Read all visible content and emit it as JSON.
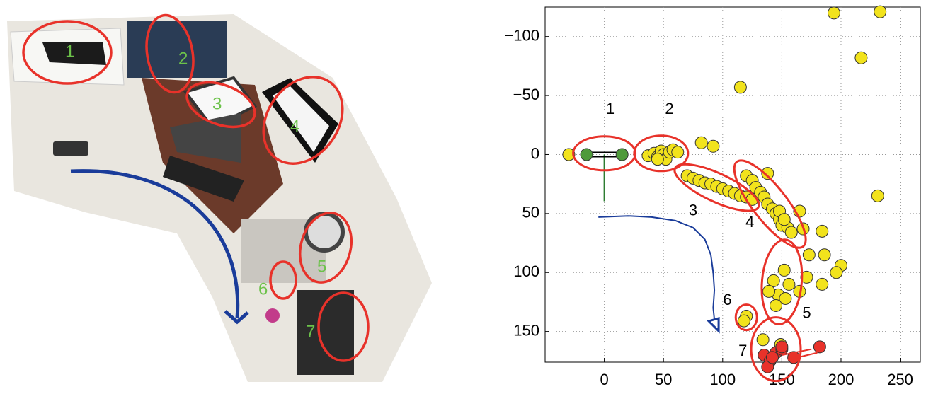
{
  "photo": {
    "labels": [
      "1",
      "2",
      "3",
      "4",
      "5",
      "6",
      "7"
    ]
  },
  "chart_data": {
    "type": "scatter",
    "xlim": [
      -50,
      267
    ],
    "ylim": [
      -125,
      176
    ],
    "y_reversed": true,
    "grid": true,
    "xticks": [
      0,
      50,
      100,
      150,
      200,
      250
    ],
    "yticks": [
      {
        "value": -100,
        "label": "−100"
      },
      {
        "value": -50,
        "label": "−50"
      },
      0,
      50,
      100,
      150
    ],
    "annotations": [
      "1",
      "2",
      "3",
      "4",
      "5",
      "6",
      "7"
    ],
    "series": [
      {
        "kind": "line",
        "color": "#1a3c9a",
        "x": [
          -5,
          20,
          40,
          60,
          75,
          85,
          90,
          92,
          93,
          92,
          93
        ],
        "values": [
          53,
          52,
          53,
          56,
          62,
          72,
          85,
          100,
          115,
          130,
          140
        ]
      },
      {
        "kind": "points",
        "color": "#f2e31c",
        "x": [
          -30,
          37,
          42,
          45,
          48,
          50,
          52,
          55,
          58,
          62,
          45,
          82,
          92,
          70,
          75,
          80,
          85,
          90,
          95,
          100,
          105,
          110,
          115,
          120,
          125,
          120,
          125,
          128,
          132,
          135,
          138,
          142,
          145,
          148,
          150,
          155,
          158,
          138,
          148,
          152,
          165,
          168,
          173,
          194,
          233,
          217,
          115,
          231,
          152,
          143,
          156,
          147,
          139,
          153,
          145,
          165,
          171,
          186,
          184,
          200,
          196,
          184,
          120,
          118,
          134,
          149
        ],
        "values": [
          0,
          1,
          -1,
          2,
          -3,
          0,
          4,
          -2,
          -4,
          -2,
          4,
          -10,
          -7,
          18,
          20,
          22,
          24,
          25,
          27,
          29,
          31,
          33,
          35,
          36,
          38,
          18,
          22,
          28,
          32,
          36,
          42,
          46,
          50,
          55,
          60,
          62,
          66,
          16,
          48,
          55,
          48,
          63,
          85,
          -120,
          -121,
          -82,
          -57,
          35,
          98,
          107,
          110,
          119,
          116,
          122,
          128,
          116,
          104,
          85,
          65,
          94,
          100,
          110,
          137,
          141,
          157,
          161
        ]
      },
      {
        "kind": "points",
        "color": "#e8322a",
        "x": [
          135,
          140,
          145,
          138,
          142,
          150,
          160,
          182,
          150
        ],
        "values": [
          170,
          175,
          168,
          180,
          172,
          165,
          172,
          163,
          163
        ]
      },
      {
        "kind": "points",
        "color": "#4f9a3a",
        "x": [
          -15,
          15
        ],
        "values": [
          0,
          0
        ]
      }
    ]
  }
}
